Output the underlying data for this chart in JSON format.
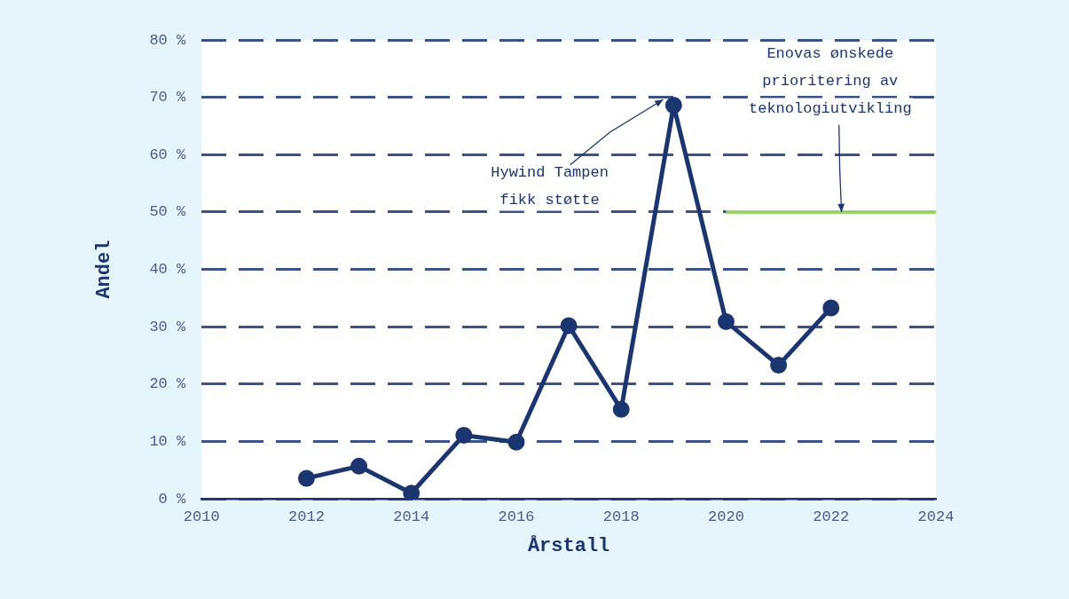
{
  "chart_data": {
    "type": "line",
    "xlabel": "Årstall",
    "ylabel": "Andel",
    "xlim": [
      2010,
      2024
    ],
    "xticks": [
      2010,
      2012,
      2014,
      2016,
      2018,
      2020,
      2022,
      2024
    ],
    "ylim": [
      0,
      80
    ],
    "yticks": [
      {
        "value": 0,
        "label": "0 %"
      },
      {
        "value": 10,
        "label": "10 %"
      },
      {
        "value": 20,
        "label": "20 %"
      },
      {
        "value": 30,
        "label": "30 %"
      },
      {
        "value": 40,
        "label": "40 %"
      },
      {
        "value": 50,
        "label": "50 %"
      },
      {
        "value": 60,
        "label": "60 %"
      },
      {
        "value": 70,
        "label": "70 %"
      },
      {
        "value": 80,
        "label": "80 %"
      }
    ],
    "grid": "y",
    "marker": "circle",
    "legend": false,
    "series": [
      {
        "color": "#1b3570",
        "x": [
          2012,
          2013,
          2014,
          2015,
          2016,
          2017,
          2018,
          2019,
          2020,
          2021,
          2022
        ],
        "values": [
          3.6,
          5.7,
          1.0,
          11.1,
          9.9,
          30.2,
          15.6,
          68.6,
          30.9,
          23.3,
          33.3
        ]
      },
      {
        "type": "line",
        "marker": "none",
        "color": "#9bd36b",
        "x": [
          2020,
          2024
        ],
        "values": [
          50,
          50
        ]
      }
    ],
    "annotations": [
      {
        "text": "Hywind Tampen\nfikk støtte",
        "x": 2018.8,
        "y": 69.6
      },
      {
        "text": "Enovas ønskede\nprioritering av\nteknologiutvikling",
        "x": 2022.2,
        "y": 50
      }
    ]
  }
}
